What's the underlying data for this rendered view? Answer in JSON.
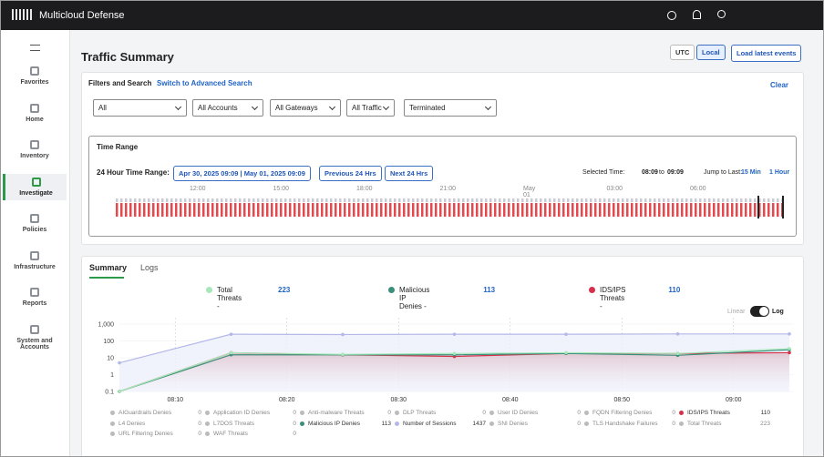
{
  "topbar": {
    "brand": "Multicloud Defense"
  },
  "sidebar": {
    "items": [
      "Favorites",
      "Home",
      "Inventory",
      "Investigate",
      "Policies",
      "Infrastructure",
      "Reports",
      "System and Accounts"
    ]
  },
  "header": {
    "title": "Traffic Summary",
    "buttons": [
      "UTC",
      "Local",
      "Load latest events"
    ]
  },
  "filters": {
    "title": "Filters and Search",
    "advanced": "Switch to Advanced Search",
    "clear": "Clear",
    "dropdowns": [
      "All",
      "All Accounts",
      "All Gateways",
      "All Traffic",
      "Terminated"
    ]
  },
  "time_range": {
    "title": "Time Range",
    "label": "24 Hour Time Range:",
    "range": "Apr 30, 2025 09:09 | May 01, 2025 09:09",
    "previous": "Previous 24 Hrs",
    "next": "Next 24 Hrs",
    "selected_label": "Selected Time:",
    "start": "08:09",
    "to": "to",
    "end": "09:09",
    "jump_label": "Jump to Last:",
    "jump_options": [
      "15 Min",
      "1 Hour"
    ],
    "timeline_labels": [
      "12:00",
      "15:00",
      "18:00",
      "21:00",
      "May 01",
      "03:00",
      "06:00"
    ]
  },
  "tabs": [
    "Summary",
    "Logs"
  ],
  "scale_toggle": [
    "Linear",
    "Log"
  ],
  "summary_legend": [
    {
      "label": "Total Threats -",
      "value": 223,
      "color": "#a6e8b9"
    },
    {
      "label": "Malicious IP Denies -",
      "value": 113,
      "color": "#3a8f7a"
    },
    {
      "label": "IDS/IPS Threats -",
      "value": 110,
      "color": "#d6304a"
    }
  ],
  "chart_data": {
    "type": "line",
    "log_scale": true,
    "ylim": [
      0.1,
      1000
    ],
    "yticks": [
      0.1,
      1,
      10,
      100,
      {
        "value": 1000,
        "label": "1,000"
      }
    ],
    "x_labels": [
      "08:10",
      "08:20",
      "08:30",
      "08:40",
      "08:50",
      "09:00"
    ],
    "series": [
      {
        "name": "Number of Sessions",
        "color": "#b3b8e8",
        "area": true,
        "values": [
          5,
          250,
          240,
          250,
          250,
          260,
          260
        ]
      },
      {
        "name": "IDS/IPS Threats",
        "color": "#d6304a",
        "area": true,
        "values": [
          0.1,
          20,
          15,
          12,
          18,
          18,
          20
        ]
      },
      {
        "name": "Malicious IP Denies",
        "color": "#3a8f7a",
        "area": false,
        "values": [
          0.1,
          15,
          15,
          15,
          18,
          14,
          30
        ]
      },
      {
        "name": "Total Threats",
        "color": "#a6e8b9",
        "area": false,
        "values": [
          0.1,
          20,
          16,
          18,
          20,
          18,
          35
        ]
      }
    ]
  },
  "counts_legend": [
    {
      "name": "AIGuardrails Denies",
      "value": 0,
      "color": "#bbb"
    },
    {
      "name": "Application ID Denies",
      "value": 0,
      "color": "#bbb"
    },
    {
      "name": "Anti-malware Threats",
      "value": 0,
      "color": "#bbb"
    },
    {
      "name": "DLP Threats",
      "value": 0,
      "color": "#bbb"
    },
    {
      "name": "User ID Denies",
      "value": 0,
      "color": "#bbb"
    },
    {
      "name": "FQDN Filtering Denies",
      "value": 0,
      "color": "#bbb"
    },
    {
      "name": "IDS/IPS Threats",
      "value": 110,
      "color": "#d6304a"
    },
    {
      "name": "L4 Denies",
      "value": 0,
      "color": "#bbb"
    },
    {
      "name": "L7DOS Threats",
      "value": 0,
      "color": "#bbb"
    },
    {
      "name": "Malicious IP Denies",
      "value": 113,
      "color": "#3a8f7a"
    },
    {
      "name": "Number of Sessions",
      "value": 1437,
      "color": "#b3b8e8"
    },
    {
      "name": "SNI Denies",
      "value": 0,
      "color": "#bbb"
    },
    {
      "name": "TLS Handshake Failures",
      "value": 0,
      "color": "#bbb"
    },
    {
      "name": "Total Threats",
      "value": 223,
      "color": "#bbb"
    },
    {
      "name": "URL Filtering Denies",
      "value": 0,
      "color": "#bbb"
    },
    {
      "name": "WAF Threats",
      "value": 0,
      "color": "#bbb"
    }
  ]
}
